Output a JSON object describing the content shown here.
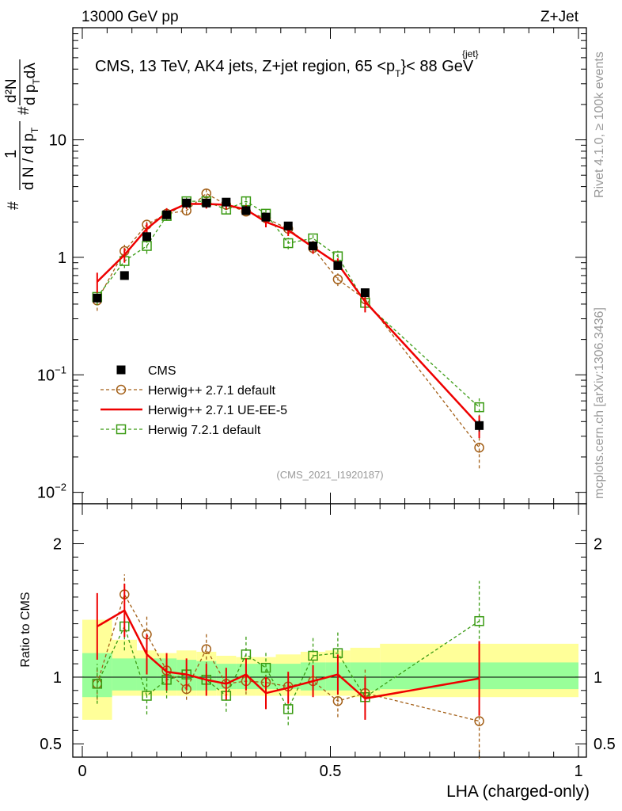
{
  "header": {
    "left": "13000 GeV pp",
    "right": "Z+Jet"
  },
  "side_text": {
    "rivet": "Rivet 4.1.0, ≥ 100k events",
    "mcplots": "mcplots.cern.ch [arXiv:1306.3436]"
  },
  "chart_data": {
    "type": "line",
    "title_line": "CMS, 13 TeV, AK4 jets, Z+jet region, 65 <p",
    "title_sup": "{jet}",
    "title_sub": "T",
    "title_tail": "}< 88 GeV",
    "analysis_id": "(CMS_2021_I1920187)",
    "xlabel": "LHA (charged-only)",
    "ylabel_parts": [
      "#",
      "1",
      "d N / d p",
      "T",
      "#",
      "d²N",
      "d p",
      "T",
      "dλ"
    ],
    "ratio_ylabel": "Ratio to CMS",
    "xlim": [
      0,
      1
    ],
    "main_ylim": [
      0.008,
      90
    ],
    "main_yscale": "log",
    "ratio_ylim": [
      0.4,
      2.3
    ],
    "x_ticks": [
      0,
      0.5,
      1
    ],
    "x_tick_labels": [
      "0",
      "0.5",
      "1"
    ],
    "main_y_tick_labels": [
      {
        "value": 0.01,
        "base": "10",
        "exp": "−2"
      },
      {
        "value": 0.1,
        "base": "10",
        "exp": "−1"
      },
      {
        "value": 1,
        "base": "1",
        "exp": ""
      },
      {
        "value": 10,
        "base": "10",
        "exp": ""
      }
    ],
    "ratio_y_ticks": [
      0.5,
      1,
      2
    ],
    "ratio_y_tick_labels": [
      "0.5",
      "1",
      "2"
    ],
    "bin_edges": [
      0.0,
      0.06,
      0.11,
      0.15,
      0.19,
      0.23,
      0.27,
      0.31,
      0.35,
      0.39,
      0.44,
      0.49,
      0.54,
      0.6,
      1.0
    ],
    "x": [
      0.03,
      0.085,
      0.13,
      0.17,
      0.21,
      0.25,
      0.29,
      0.33,
      0.37,
      0.415,
      0.465,
      0.515,
      0.57,
      0.8
    ],
    "band_inner": [
      [
        0.85,
        1.18
      ],
      [
        0.9,
        1.14
      ],
      [
        0.9,
        1.14
      ],
      [
        0.9,
        1.14
      ],
      [
        0.9,
        1.13
      ],
      [
        0.9,
        1.12
      ],
      [
        0.91,
        1.1
      ],
      [
        0.91,
        1.1
      ],
      [
        0.91,
        1.1
      ],
      [
        0.91,
        1.1
      ],
      [
        0.9,
        1.11
      ],
      [
        0.9,
        1.11
      ],
      [
        0.9,
        1.11
      ],
      [
        0.91,
        1.11
      ]
    ],
    "band_outer": [
      [
        0.68,
        1.43
      ],
      [
        0.86,
        1.28
      ],
      [
        0.86,
        1.2
      ],
      [
        0.86,
        1.18
      ],
      [
        0.86,
        1.2
      ],
      [
        0.86,
        1.19
      ],
      [
        0.86,
        1.16
      ],
      [
        0.86,
        1.15
      ],
      [
        0.86,
        1.15
      ],
      [
        0.86,
        1.17
      ],
      [
        0.86,
        1.19
      ],
      [
        0.86,
        1.2
      ],
      [
        0.85,
        1.22
      ],
      [
        0.85,
        1.25
      ]
    ],
    "series": [
      {
        "name": "CMS",
        "color": "#000000",
        "marker": "filled-square",
        "values": [
          0.45,
          0.7,
          1.5,
          2.3,
          2.9,
          2.9,
          2.95,
          2.5,
          2.2,
          1.85,
          1.25,
          0.85,
          0.5,
          0.037
        ],
        "errors": [
          0.03,
          0.03,
          0.05,
          0.05,
          0.05,
          0.05,
          0.05,
          0.05,
          0.05,
          0.04,
          0.04,
          0.03,
          0.02,
          0.004
        ],
        "ratio": [
          1,
          1,
          1,
          1,
          1,
          1,
          1,
          1,
          1,
          1,
          1,
          1,
          1,
          1
        ],
        "ratio_errors": []
      },
      {
        "name": "Herwig++ 2.7.1 default",
        "color": "#a35f17",
        "marker": "open-circle",
        "dashed": true,
        "values": [
          0.43,
          1.13,
          1.9,
          2.35,
          2.5,
          3.5,
          2.8,
          2.45,
          2.15,
          1.75,
          1.2,
          0.65,
          0.44,
          0.024
        ],
        "errors": [
          0.08,
          0.15,
          0.2,
          0.18,
          0.2,
          0.28,
          0.25,
          0.2,
          0.2,
          0.15,
          0.12,
          0.08,
          0.06,
          0.008
        ],
        "ratio": [
          0.95,
          1.62,
          1.32,
          1.05,
          0.91,
          1.21,
          0.95,
          0.97,
          0.96,
          0.93,
          0.97,
          0.82,
          0.88,
          0.67
        ],
        "ratio_errors": [
          0.12,
          0.15,
          0.14,
          0.12,
          0.08,
          0.12,
          0.1,
          0.1,
          0.09,
          0.1,
          0.1,
          0.12,
          0.18,
          0.28
        ]
      },
      {
        "name": "Herwig++ 2.7.1 UE-EE-5",
        "color": "#ee0000",
        "marker": "line",
        "dashed": false,
        "values": [
          0.62,
          1.05,
          1.75,
          2.4,
          2.85,
          2.85,
          2.8,
          2.55,
          2.0,
          1.7,
          1.22,
          0.88,
          0.42,
          0.037
        ],
        "errors": [
          0.12,
          0.15,
          0.2,
          0.22,
          0.25,
          0.25,
          0.25,
          0.22,
          0.2,
          0.18,
          0.15,
          0.1,
          0.08,
          0.008
        ],
        "ratio": [
          1.38,
          1.5,
          1.17,
          1.04,
          1.02,
          0.98,
          0.95,
          1.02,
          0.88,
          0.92,
          0.97,
          1.02,
          0.84,
          0.99
        ],
        "ratio_errors": [
          0.25,
          0.2,
          0.15,
          0.14,
          0.12,
          0.12,
          0.12,
          0.12,
          0.12,
          0.12,
          0.12,
          0.15,
          0.16,
          0.28
        ]
      },
      {
        "name": "Herwig 7.2.1 default",
        "color": "#3a9b13",
        "marker": "open-square",
        "dashed": true,
        "values": [
          0.46,
          0.93,
          1.25,
          2.25,
          3.0,
          3.0,
          2.55,
          3.0,
          2.35,
          1.32,
          1.45,
          1.02,
          0.41,
          0.053
        ],
        "errors": [
          0.07,
          0.12,
          0.18,
          0.2,
          0.22,
          0.25,
          0.22,
          0.25,
          0.2,
          0.15,
          0.15,
          0.12,
          0.06,
          0.01
        ],
        "ratio": [
          0.95,
          1.38,
          0.86,
          0.98,
          1.02,
          0.98,
          0.86,
          1.17,
          1.07,
          0.76,
          1.16,
          1.18,
          0.85,
          1.42
        ],
        "ratio_errors": [
          0.15,
          0.18,
          0.14,
          0.14,
          0.12,
          0.12,
          0.12,
          0.14,
          0.12,
          0.12,
          0.14,
          0.16,
          0.15,
          0.3
        ]
      }
    ],
    "legend": [
      "CMS",
      "Herwig++ 2.7.1 default",
      "Herwig++ 2.7.1 UE-EE-5",
      "Herwig 7.2.1 default"
    ],
    "legend_position": "lower-left",
    "reference_line": 1
  }
}
